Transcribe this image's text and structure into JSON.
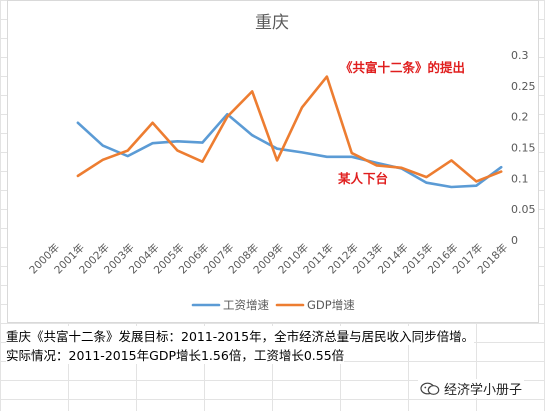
{
  "chart_data": {
    "type": "line",
    "title": "重庆",
    "categories": [
      "2000年",
      "2001年",
      "2002年",
      "2003年",
      "2004年",
      "2005年",
      "2006年",
      "2007年",
      "2008年",
      "2009年",
      "2010年",
      "2011年",
      "2012年",
      "2013年",
      "2014年",
      "2015年",
      "2016年",
      "2017年",
      "2018年"
    ],
    "series": [
      {
        "name": "工资增速",
        "color": "#5b9bd5",
        "values": [
          null,
          0.19,
          0.153,
          0.136,
          0.157,
          0.16,
          0.158,
          0.204,
          0.17,
          0.148,
          0.142,
          0.135,
          0.135,
          0.125,
          0.116,
          0.093,
          0.086,
          0.088,
          0.118
        ]
      },
      {
        "name": "GDP增速",
        "color": "#ed7d31",
        "values": [
          null,
          0.104,
          0.13,
          0.145,
          0.19,
          0.145,
          0.127,
          0.2,
          0.241,
          0.129,
          0.215,
          0.265,
          0.141,
          0.121,
          0.117,
          0.102,
          0.129,
          0.095,
          0.111
        ]
      }
    ],
    "ylim": [
      0,
      0.3
    ],
    "yticks": [
      "0",
      "0.05",
      "0.1",
      "0.15",
      "0.2",
      "0.25",
      "0.3"
    ],
    "grid": false,
    "legend": "bottom",
    "annotations": [
      {
        "text": "《共富十二条》的提出",
        "color": "#e01e1e"
      },
      {
        "text": "某人下台",
        "color": "#e01e1e"
      }
    ]
  },
  "notes": {
    "line1": "重庆《共富十二条》发展目标：2011-2015年，全市经济总量与居民收入同步倍增。",
    "line2": "实际情况：2011-2015年GDP增长1.56倍，工资增长0.55倍"
  },
  "watermark": {
    "text": "经济学小册子",
    "icon": "wechat-icon"
  }
}
